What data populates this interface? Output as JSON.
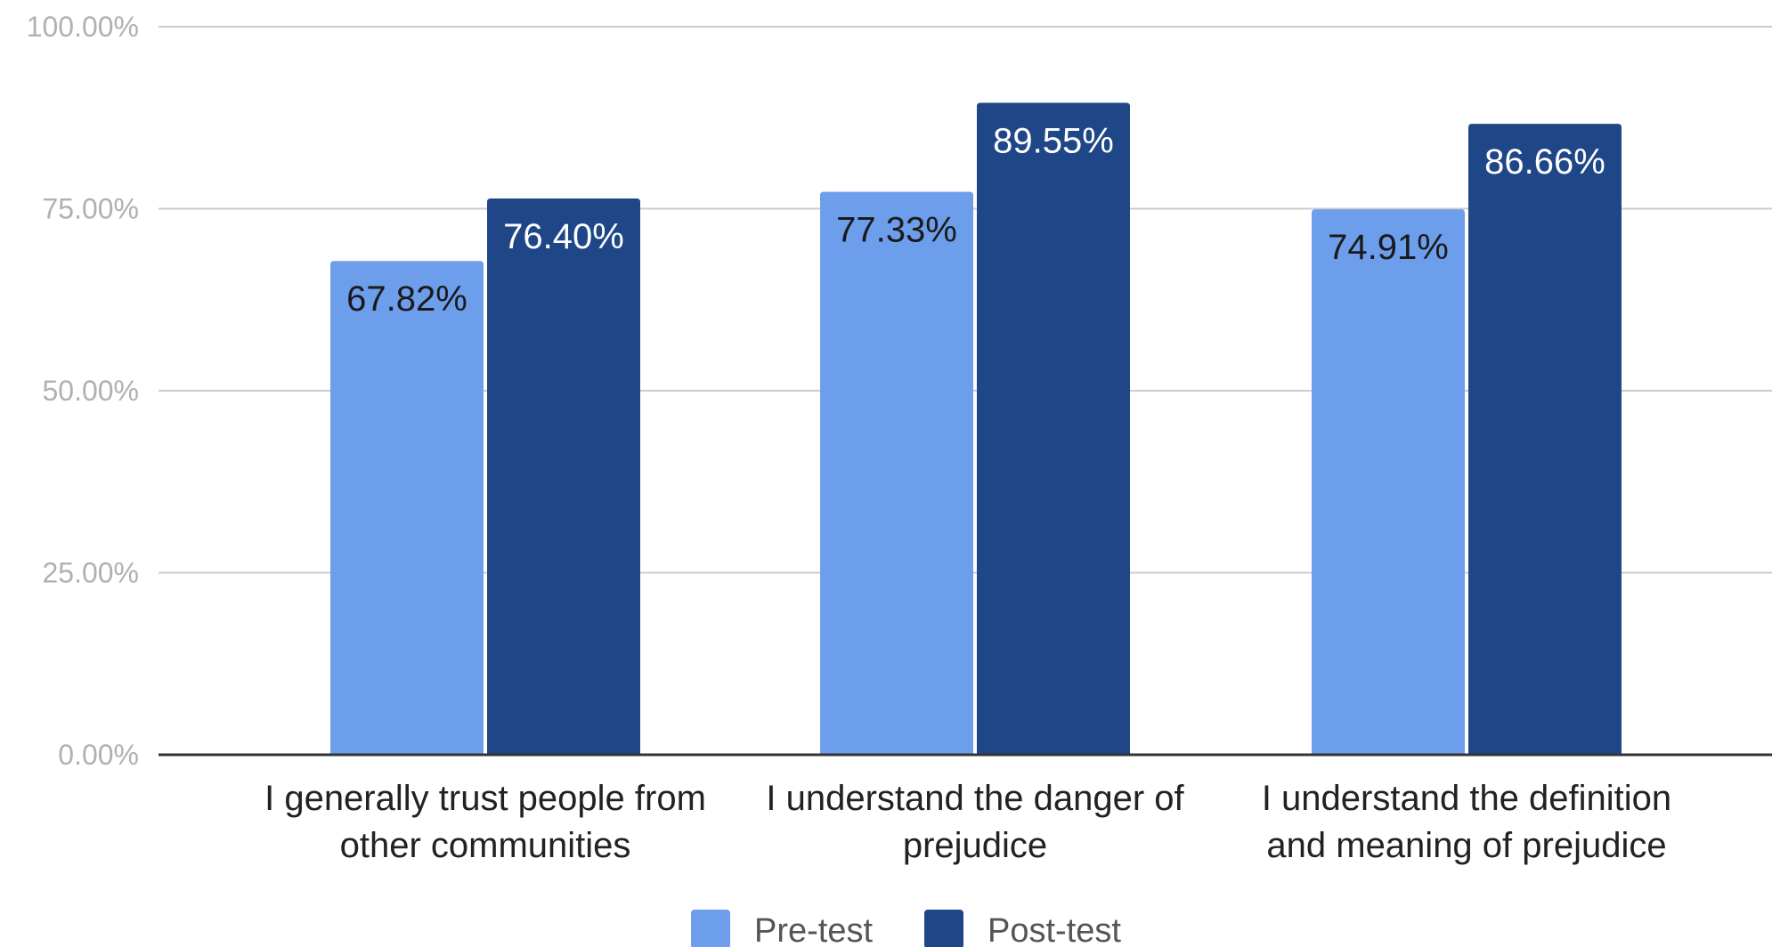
{
  "chart_data": {
    "type": "bar",
    "categories": [
      [
        "I generally trust people from",
        "other communities"
      ],
      [
        "I understand the danger of",
        "prejudice"
      ],
      [
        "I understand the definition",
        "and meaning of prejudice"
      ]
    ],
    "series": [
      {
        "name": "Pre-test",
        "color": "#6d9eeb",
        "label_color": "#1a1a1a",
        "values": [
          67.82,
          77.33,
          74.91
        ],
        "labels": [
          "67.82%",
          "77.33%",
          "74.91%"
        ]
      },
      {
        "name": "Post-test",
        "color": "#1f4788",
        "label_color": "#ffffff",
        "values": [
          76.4,
          89.55,
          86.66
        ],
        "labels": [
          "76.40%",
          "89.55%",
          "86.66%"
        ]
      }
    ],
    "ylim": [
      0,
      100
    ],
    "yticks": [
      0,
      25,
      50,
      75,
      100
    ],
    "ytick_labels": [
      "0.00%",
      "25.00%",
      "50.00%",
      "75.00%",
      "100.00%"
    ],
    "grid": true,
    "legend_position": "bottom",
    "gridline_color": "#cccccc",
    "axis_color": "#333333"
  }
}
